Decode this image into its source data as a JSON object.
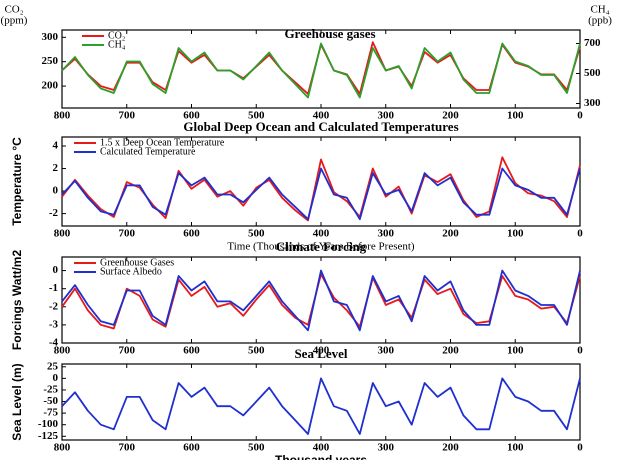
{
  "chart_data": [
    {
      "type": "line",
      "title": "Greehouse gases",
      "y_label": [
        "CO₂",
        "(ppm)"
      ],
      "y2_label": [
        "CH₄",
        "(ppb)"
      ],
      "x": [
        800,
        780,
        760,
        740,
        720,
        700,
        680,
        660,
        640,
        620,
        600,
        580,
        560,
        540,
        520,
        500,
        480,
        460,
        440,
        420,
        400,
        380,
        360,
        340,
        320,
        300,
        280,
        260,
        240,
        220,
        200,
        180,
        160,
        140,
        120,
        100,
        80,
        60,
        40,
        20,
        0
      ],
      "xlim": [
        800,
        0
      ],
      "xticks": [
        800,
        700,
        600,
        500,
        400,
        300,
        200,
        100,
        0
      ],
      "ylim": [
        155,
        315
      ],
      "yticks": [
        200,
        250,
        300
      ],
      "y2lim": [
        270,
        790
      ],
      "y2ticks": [
        300,
        500,
        700
      ],
      "series": [
        {
          "name": "CO₂",
          "color": "#e8191a",
          "values": [
            232,
            256,
            224,
            200,
            192,
            248,
            248,
            208,
            192,
            272,
            248,
            264,
            232,
            232,
            216,
            240,
            264,
            232,
            208,
            184,
            285,
            232,
            224,
            184,
            290,
            232,
            240,
            200,
            270,
            248,
            264,
            216,
            192,
            192,
            285,
            248,
            240,
            224,
            224,
            192,
            280
          ]
        },
        {
          "name": "CH₄",
          "color": "#2ca02c",
          "axis": "y2",
          "values": [
            520,
            610,
            490,
            400,
            370,
            580,
            580,
            430,
            370,
            670,
            580,
            640,
            520,
            520,
            460,
            550,
            640,
            520,
            430,
            340,
            700,
            520,
            490,
            340,
            670,
            520,
            550,
            400,
            670,
            580,
            640,
            460,
            370,
            370,
            700,
            580,
            550,
            490,
            490,
            370,
            700
          ]
        }
      ]
    },
    {
      "type": "line",
      "title": "Global Deep Ocean and Calculated Temperatures",
      "y_label": "Temperature °C",
      "x_label": "Time (Thousands of Years Before Present)",
      "x": [
        800,
        780,
        760,
        740,
        720,
        700,
        680,
        660,
        640,
        620,
        600,
        580,
        560,
        540,
        520,
        500,
        480,
        460,
        440,
        420,
        400,
        380,
        360,
        340,
        320,
        300,
        280,
        260,
        240,
        220,
        200,
        180,
        160,
        140,
        120,
        100,
        80,
        60,
        40,
        20,
        0
      ],
      "xlim": [
        800,
        0
      ],
      "xticks": [
        800,
        700,
        600,
        500,
        400,
        300,
        200,
        100,
        0
      ],
      "ylim": [
        -3.1,
        4.8
      ],
      "yticks": [
        -2,
        0,
        2,
        4
      ],
      "series": [
        {
          "name": "1.5 x Deep Ocean Temperature",
          "color": "#e8191a",
          "values": [
            -0.5,
            1.0,
            -0.4,
            -1.6,
            -2.3,
            0.8,
            0.3,
            -1.2,
            -2.4,
            1.8,
            0.2,
            1.0,
            -0.5,
            0.0,
            -1.3,
            0.3,
            1.0,
            -0.6,
            -1.7,
            -2.6,
            2.8,
            -0.1,
            -0.9,
            -2.3,
            2.0,
            -0.5,
            0.4,
            -2.0,
            1.4,
            0.8,
            1.5,
            -0.8,
            -2.3,
            -1.8,
            3.0,
            0.7,
            -0.2,
            -0.4,
            -0.9,
            -2.3,
            2.3
          ]
        },
        {
          "name": "Calculated Temperature",
          "color": "#1f2fd0",
          "values": [
            -0.3,
            0.9,
            -0.6,
            -1.8,
            -2.1,
            0.5,
            0.5,
            -1.4,
            -2.1,
            1.6,
            0.5,
            1.2,
            -0.3,
            -0.3,
            -1.0,
            0.1,
            1.2,
            -0.3,
            -1.4,
            -2.5,
            2.0,
            -0.3,
            -0.6,
            -2.5,
            1.6,
            -0.3,
            0.1,
            -1.8,
            1.6,
            0.5,
            1.2,
            -1.0,
            -2.1,
            -2.1,
            2.0,
            0.5,
            0.1,
            -0.6,
            -0.6,
            -2.1,
            2.0
          ]
        }
      ]
    },
    {
      "type": "line",
      "title": "Climate Forcing",
      "y_label": "Forcings Watt/m2",
      "x": [
        800,
        780,
        760,
        740,
        720,
        700,
        680,
        660,
        640,
        620,
        600,
        580,
        560,
        540,
        520,
        500,
        480,
        460,
        440,
        420,
        400,
        380,
        360,
        340,
        320,
        300,
        280,
        260,
        240,
        220,
        200,
        180,
        160,
        140,
        120,
        100,
        80,
        60,
        40,
        20,
        0
      ],
      "xlim": [
        800,
        0
      ],
      "xticks": [
        800,
        700,
        600,
        500,
        400,
        300,
        200,
        100,
        0
      ],
      "ylim": [
        -4,
        0.75
      ],
      "yticks": [
        -4,
        -3,
        -2,
        -1,
        0
      ],
      "series": [
        {
          "name": "Greenhouse Gases",
          "color": "#e8191a",
          "values": [
            -2.0,
            -1.0,
            -2.2,
            -3.0,
            -3.2,
            -1.0,
            -1.4,
            -2.7,
            -3.1,
            -0.5,
            -1.4,
            -0.9,
            -2.0,
            -1.8,
            -2.5,
            -1.6,
            -0.8,
            -1.9,
            -2.6,
            -3.0,
            -0.2,
            -1.5,
            -2.2,
            -3.1,
            -0.4,
            -1.9,
            -1.6,
            -2.6,
            -0.5,
            -1.3,
            -1.0,
            -2.4,
            -2.9,
            -2.8,
            -0.3,
            -1.4,
            -1.6,
            -2.1,
            -2.0,
            -2.9,
            -0.3
          ]
        },
        {
          "name": "Surface Albedo",
          "color": "#1f2fd0",
          "values": [
            -1.7,
            -0.8,
            -1.9,
            -2.8,
            -3.0,
            -1.1,
            -1.1,
            -2.5,
            -3.0,
            -0.3,
            -1.1,
            -0.6,
            -1.7,
            -1.7,
            -2.2,
            -1.4,
            -0.6,
            -1.7,
            -2.5,
            -3.3,
            0,
            -1.7,
            -1.9,
            -3.3,
            -0.3,
            -1.7,
            -1.4,
            -2.8,
            -0.3,
            -1.1,
            -0.6,
            -2.2,
            -3.0,
            -3.0,
            0,
            -1.1,
            -1.4,
            -1.9,
            -1.9,
            -3.0,
            0
          ]
        }
      ]
    },
    {
      "type": "line",
      "title": "Sea Level",
      "y_label": "Sea Level (m)",
      "x_label": "Thousand years",
      "x": [
        800,
        780,
        760,
        740,
        720,
        700,
        680,
        660,
        640,
        620,
        600,
        580,
        560,
        540,
        520,
        500,
        480,
        460,
        440,
        420,
        400,
        380,
        360,
        340,
        320,
        300,
        280,
        260,
        240,
        220,
        200,
        180,
        160,
        140,
        120,
        100,
        80,
        60,
        40,
        20,
        0
      ],
      "xlim": [
        800,
        0
      ],
      "xticks": [
        800,
        700,
        600,
        500,
        400,
        300,
        200,
        100,
        0
      ],
      "ylim": [
        -133,
        31
      ],
      "yticks": [
        -125,
        -100,
        -75,
        -50,
        -25,
        0,
        25
      ],
      "series": [
        {
          "color": "#1f2fd0",
          "values": [
            -60,
            -30,
            -70,
            -100,
            -110,
            -40,
            -40,
            -90,
            -110,
            -10,
            -40,
            -20,
            -60,
            -60,
            -80,
            -50,
            -20,
            -60,
            -90,
            -120,
            0,
            -60,
            -70,
            -120,
            -10,
            -60,
            -50,
            -100,
            -10,
            -40,
            -20,
            -80,
            -110,
            -110,
            0,
            -40,
            -50,
            -70,
            -70,
            -110,
            0
          ]
        }
      ]
    }
  ]
}
